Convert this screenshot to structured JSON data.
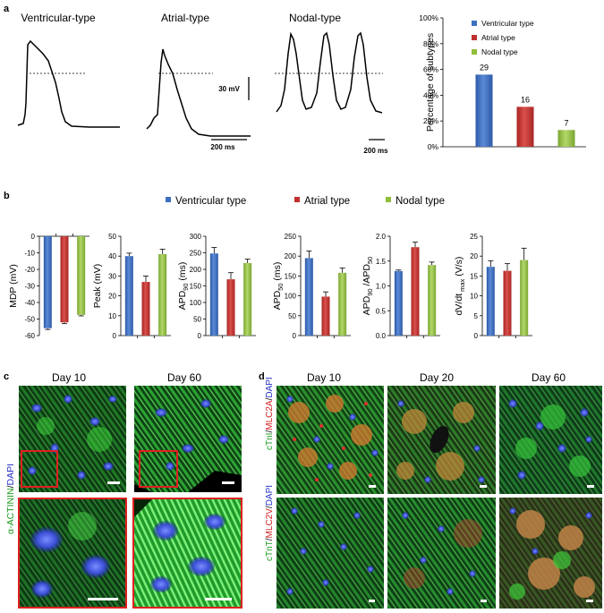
{
  "panel_a": {
    "label": "a",
    "traces": [
      {
        "title": "Ventricular-type"
      },
      {
        "title": "Atrial-type"
      },
      {
        "title": "Nodal-type"
      }
    ],
    "scale_voltage": "30 mV",
    "scale_time_atrial": "200 ms",
    "scale_time_nodal": "200 ms"
  },
  "panel_b": {
    "label": "b",
    "legend": [
      "Ventricular type",
      "Atrial type",
      "Nodal type"
    ]
  },
  "panel_c": {
    "label": "c",
    "columns": [
      "Day 10",
      "Day 60"
    ],
    "stain": {
      "green": "α-ACTININ",
      "sep": "/",
      "blue": "DAPI"
    }
  },
  "panel_d": {
    "label": "d",
    "columns": [
      "Day 10",
      "Day 20",
      "Day 60"
    ],
    "row1_stain": {
      "green": "cTnI",
      "sep1": "/",
      "red": "MLC2A",
      "sep2": "/",
      "blue": "DAPI"
    },
    "row2_stain": {
      "green": "cTnT",
      "sep1": "/",
      "red": "MLC2V",
      "sep2": "/",
      "blue": "DAPI"
    }
  },
  "colors": {
    "ventricular": "#3e6fbf",
    "atrial": "#c0312e",
    "nodal": "#8fbd3b"
  },
  "chart_data": [
    {
      "type": "bar",
      "ylabel": "Percentage of subtypes",
      "ylim": [
        0,
        100
      ],
      "yticks": [
        "0%",
        "20%",
        "40%",
        "60%",
        "80%",
        "100%"
      ],
      "legend": [
        "Ventricular type",
        "Atrial type",
        "Nodal type"
      ],
      "legend_position": "top-right",
      "values": [
        56,
        31,
        13
      ],
      "data_labels": [
        "29",
        "16",
        "7"
      ]
    },
    {
      "type": "bar",
      "ylabel": "MDP (mV)",
      "ylim": [
        -60,
        0
      ],
      "yticks": [
        -60,
        -50,
        -40,
        -30,
        -20,
        -10,
        0
      ],
      "values": [
        -55.5,
        -52,
        -47.5
      ],
      "errors": [
        0.8,
        0.8,
        0.6
      ]
    },
    {
      "type": "bar",
      "ylabel": "Peak (mV)",
      "ylim": [
        0,
        50
      ],
      "yticks": [
        0,
        10,
        20,
        30,
        40,
        50
      ],
      "values": [
        40,
        27,
        41
      ],
      "errors": [
        1.5,
        3,
        2.5
      ]
    },
    {
      "type": "bar",
      "ylabel": "APD90 (ms)",
      "ylim": [
        0,
        300
      ],
      "yticks": [
        0,
        50,
        100,
        150,
        200,
        250,
        300
      ],
      "values": [
        248,
        170,
        219
      ],
      "errors": [
        18,
        20,
        12
      ]
    },
    {
      "type": "bar",
      "ylabel": "APD50 (ms)",
      "ylim": [
        0,
        250
      ],
      "yticks": [
        0,
        50,
        100,
        150,
        200,
        250
      ],
      "values": [
        195,
        98,
        158
      ],
      "errors": [
        18,
        12,
        12
      ]
    },
    {
      "type": "bar",
      "ylabel": "APD90 /APD50",
      "ylim": [
        0,
        2
      ],
      "yticks": [
        "0.0",
        "0.5",
        "1.0",
        "1.5",
        "2.0"
      ],
      "values": [
        1.3,
        1.78,
        1.42
      ],
      "errors": [
        0.02,
        0.1,
        0.06
      ]
    },
    {
      "type": "bar",
      "ylabel": "dV/dt max (V/s)",
      "ylim": [
        0,
        25
      ],
      "yticks": [
        0,
        5,
        10,
        15,
        20,
        25
      ],
      "values": [
        17.3,
        16.3,
        19
      ],
      "errors": [
        1.5,
        1.8,
        3
      ]
    }
  ]
}
